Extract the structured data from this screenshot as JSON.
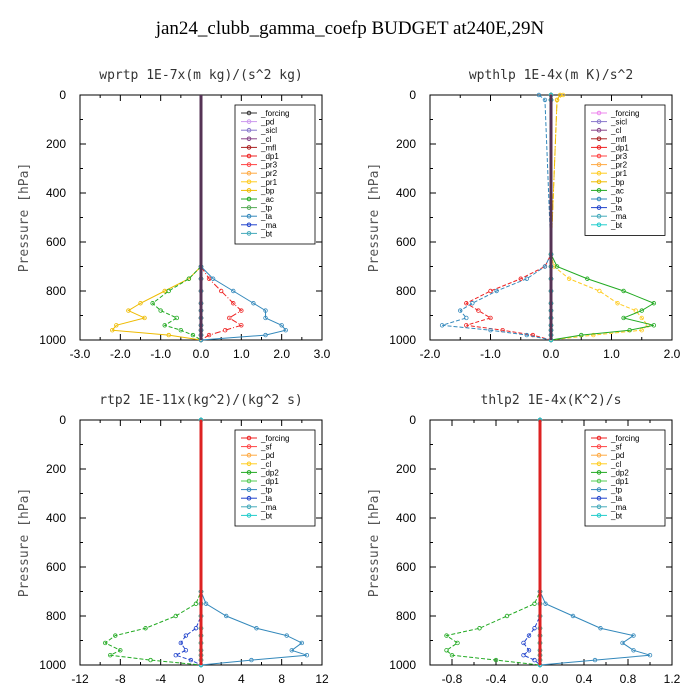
{
  "title": "jan24_clubb_gamma_coefp  BUDGET at240E,29N",
  "chart_data": [
    {
      "type": "line",
      "title": "wprtp  1E-7x(m kg)/(s^2 kg)",
      "ylabel": "Pressure [hPa]",
      "xlim": [
        -3,
        3
      ],
      "ylim": [
        1000,
        0
      ],
      "y_inverted": true,
      "xticks": [
        -3,
        -2,
        -1,
        0,
        1,
        2,
        3
      ],
      "xtick_labels": [
        "-3.0",
        "-2.0",
        "-1.0",
        "0.0",
        "1.0",
        "2.0",
        "3.0"
      ],
      "yticks": [
        0,
        200,
        400,
        600,
        800,
        1000
      ],
      "legend_position": "top-right",
      "pressure_levels": [
        700,
        750,
        800,
        850,
        880,
        910,
        940,
        960,
        980,
        1000
      ],
      "series": [
        {
          "name": "_forcing",
          "color": "#333333",
          "values": [
            0,
            0,
            0,
            0,
            0,
            0,
            0,
            0,
            0,
            0
          ]
        },
        {
          "name": "_pd",
          "color": "#cc99ee",
          "values": [
            0,
            0,
            0,
            0,
            0,
            0,
            0,
            0,
            0,
            0
          ]
        },
        {
          "name": "_sicl",
          "color": "#8877cc",
          "values": [
            0,
            0,
            0,
            0,
            0,
            0,
            0,
            0,
            0,
            0
          ]
        },
        {
          "name": "_cl",
          "color": "#884488",
          "values": [
            0,
            0,
            0,
            0,
            0,
            0,
            0,
            0,
            0,
            0
          ]
        },
        {
          "name": "_mfl",
          "color": "#aa2222",
          "values": [
            0,
            0,
            0,
            0,
            0,
            0,
            0,
            0,
            0,
            0
          ]
        },
        {
          "name": "_dp1",
          "color": "#ee2222",
          "values": [
            0,
            0.2,
            0.5,
            0.8,
            1.0,
            0.7,
            1.0,
            0.6,
            0.2,
            0
          ]
        },
        {
          "name": "_pr3",
          "color": "#ff4444",
          "values": [
            0,
            0,
            0,
            0,
            0,
            0,
            0,
            0,
            0,
            0
          ]
        },
        {
          "name": "_pr2",
          "color": "#ffaa44",
          "values": [
            0,
            0,
            0,
            0,
            0,
            0,
            0,
            0,
            0,
            0
          ]
        },
        {
          "name": "_pr1",
          "color": "#ffcc22",
          "values": [
            0,
            0,
            0,
            0,
            0,
            0,
            0,
            0,
            0,
            0
          ]
        },
        {
          "name": "_bp",
          "color": "#eebb00",
          "values": [
            0,
            -0.3,
            -0.9,
            -1.5,
            -1.8,
            -1.4,
            -2.1,
            -2.2,
            -0.8,
            0
          ]
        },
        {
          "name": "_ac",
          "color": "#22aa22",
          "values": [
            0,
            -0.3,
            -0.8,
            -1.2,
            -1.0,
            -0.6,
            -0.9,
            -0.5,
            -0.2,
            0
          ]
        },
        {
          "name": "_tp",
          "color": "#55aa55",
          "values": [
            0,
            0,
            0,
            0,
            0,
            0,
            0,
            0,
            0,
            0
          ]
        },
        {
          "name": "_ta",
          "color": "#3388bb",
          "values": [
            0,
            0.3,
            0.8,
            1.3,
            1.6,
            1.6,
            2.0,
            2.1,
            1.6,
            0
          ]
        },
        {
          "name": "_ma",
          "color": "#2244cc",
          "values": [
            0,
            0,
            0,
            0,
            0,
            0,
            0,
            0,
            0,
            0
          ]
        },
        {
          "name": "_bt",
          "color": "#44aabb",
          "values": [
            0,
            0,
            0,
            0,
            0,
            0,
            0,
            0,
            0,
            0
          ]
        }
      ]
    },
    {
      "type": "line",
      "title": "wpthlp  1E-4x(m K)/s^2",
      "ylabel": "Pressure [hPa]",
      "xlim": [
        -2,
        2
      ],
      "ylim": [
        1000,
        0
      ],
      "y_inverted": true,
      "xticks": [
        -2,
        -1,
        0,
        1,
        2
      ],
      "xtick_labels": [
        "-2.0",
        "-1.0",
        "0.0",
        "1.0",
        "2.0"
      ],
      "yticks": [
        0,
        200,
        400,
        600,
        800,
        1000
      ],
      "legend_position": "top-right",
      "pressure_levels": [
        0,
        20,
        650,
        700,
        750,
        800,
        850,
        880,
        910,
        940,
        960,
        980,
        1000
      ],
      "series": [
        {
          "name": "_forcing",
          "color": "#ee88ee",
          "values": [
            0,
            0,
            0,
            0,
            0,
            0,
            0,
            0,
            0,
            0,
            0,
            0,
            0
          ]
        },
        {
          "name": "_sicl",
          "color": "#8877cc",
          "values": [
            0,
            0,
            0,
            0,
            0,
            0,
            0,
            0,
            0,
            0,
            0,
            0,
            0
          ]
        },
        {
          "name": "_cl",
          "color": "#884488",
          "values": [
            0,
            0,
            0,
            0,
            0,
            0,
            0,
            0,
            0,
            0,
            0,
            0,
            0
          ]
        },
        {
          "name": "_mfl",
          "color": "#aa2222",
          "values": [
            0,
            0,
            0,
            0,
            0,
            0,
            0,
            0,
            0,
            0,
            0,
            0,
            0
          ]
        },
        {
          "name": "_dp1",
          "color": "#ee2222",
          "values": [
            0,
            0,
            0,
            -0.1,
            -0.5,
            -1.0,
            -1.4,
            -1.2,
            -1.0,
            -1.4,
            -0.8,
            -0.3,
            0
          ]
        },
        {
          "name": "_pr3",
          "color": "#ff4444",
          "values": [
            0,
            0,
            0,
            0,
            0,
            0,
            0,
            0,
            0,
            0,
            0,
            0,
            0
          ]
        },
        {
          "name": "_pr2",
          "color": "#ffaa44",
          "values": [
            0,
            0,
            0,
            0,
            0,
            0,
            0,
            0,
            0,
            0,
            0,
            0,
            0
          ]
        },
        {
          "name": "_pr1",
          "color": "#ffcc22",
          "values": [
            0.2,
            0.1,
            0,
            0.05,
            0.3,
            0.8,
            1.1,
            1.4,
            1.5,
            1.6,
            1.5,
            0.7,
            0
          ]
        },
        {
          "name": "_bp",
          "color": "#eebb00",
          "values": [
            0.15,
            0.1,
            0,
            0,
            0,
            0,
            0,
            0,
            0,
            0,
            0,
            0,
            0
          ]
        },
        {
          "name": "_ac",
          "color": "#22aa22",
          "values": [
            0,
            0,
            0,
            0.1,
            0.6,
            1.2,
            1.7,
            1.5,
            1.2,
            1.7,
            1.3,
            0.5,
            0
          ]
        },
        {
          "name": "_tp",
          "color": "#3388bb",
          "values": [
            -0.2,
            -0.1,
            0,
            -0.1,
            -0.4,
            -0.9,
            -1.3,
            -1.5,
            -1.4,
            -1.8,
            -1.0,
            -0.4,
            0
          ]
        },
        {
          "name": "_ta",
          "color": "#2244cc",
          "values": [
            0,
            0,
            0,
            0,
            0,
            0,
            0,
            0,
            0,
            0,
            0,
            0,
            0
          ]
        },
        {
          "name": "_ma",
          "color": "#44aabb",
          "values": [
            0,
            0,
            0,
            0,
            0,
            0,
            0,
            0,
            0,
            0,
            0,
            0,
            0
          ]
        },
        {
          "name": "_bt",
          "color": "#22cccc",
          "values": [
            0,
            0,
            0,
            0,
            0,
            0,
            0,
            0,
            0,
            0,
            0,
            0,
            0
          ]
        }
      ]
    },
    {
      "type": "line",
      "title": "rtp2  1E-11x(kg^2)/(kg^2 s)",
      "ylabel": "Pressure [hPa]",
      "xlim": [
        -12,
        12
      ],
      "ylim": [
        1000,
        0
      ],
      "y_inverted": true,
      "xticks": [
        -12,
        -8,
        -4,
        0,
        4,
        8,
        12
      ],
      "xtick_labels": [
        "-12",
        "-8",
        "-4",
        "0",
        "4",
        "8",
        "12"
      ],
      "yticks": [
        0,
        200,
        400,
        600,
        800,
        1000
      ],
      "legend_position": "top-right",
      "pressure_levels": [
        0,
        700,
        750,
        800,
        850,
        880,
        910,
        940,
        960,
        980,
        1000
      ],
      "series": [
        {
          "name": "_forcing",
          "color": "#ee2222",
          "values": [
            0,
            0,
            0,
            0,
            0,
            0,
            0,
            0,
            0,
            0,
            0
          ]
        },
        {
          "name": "_sf",
          "color": "#ff4444",
          "values": [
            0,
            0,
            0,
            0,
            0,
            0,
            0,
            0,
            0,
            0,
            0
          ]
        },
        {
          "name": "_pd",
          "color": "#ffaa44",
          "values": [
            0,
            0,
            0,
            0,
            0,
            0,
            0,
            0,
            0,
            0,
            0
          ]
        },
        {
          "name": "_cl",
          "color": "#ffcc22",
          "values": [
            0,
            0,
            0,
            0,
            0,
            0,
            0,
            0,
            0,
            0,
            0
          ]
        },
        {
          "name": "_dp2",
          "color": "#22aa22",
          "values": [
            0,
            0,
            -0.5,
            -2.5,
            -5.5,
            -8.5,
            -9.5,
            -8.0,
            -9.0,
            -5.0,
            0
          ]
        },
        {
          "name": "_dp1",
          "color": "#55cc55",
          "values": [
            0,
            0,
            0,
            0,
            0,
            0,
            0,
            0,
            0,
            0,
            0
          ]
        },
        {
          "name": "_tp",
          "color": "#3388bb",
          "values": [
            0,
            0,
            0.5,
            2.5,
            5.5,
            8.5,
            10.0,
            9.0,
            10.5,
            5.0,
            0
          ]
        },
        {
          "name": "_ta",
          "color": "#2244cc",
          "values": [
            0,
            0,
            0,
            0,
            -0.5,
            -1.5,
            -2.0,
            -1.5,
            -2.5,
            -1.0,
            0
          ]
        },
        {
          "name": "_ma",
          "color": "#44aabb",
          "values": [
            0,
            0,
            0,
            0,
            0,
            0,
            0,
            0,
            0,
            0,
            0
          ]
        },
        {
          "name": "_bt",
          "color": "#22cccc",
          "values": [
            0,
            0,
            0,
            0,
            0,
            0,
            0,
            0,
            0,
            0,
            0
          ]
        }
      ]
    },
    {
      "type": "line",
      "title": "thlp2  1E-4x(K^2)/s",
      "ylabel": "Pressure [hPa]",
      "xlim": [
        -1,
        1.2
      ],
      "ylim": [
        1000,
        0
      ],
      "y_inverted": true,
      "xticks": [
        -0.8,
        -0.4,
        0.0,
        0.4,
        0.8,
        1.2
      ],
      "xtick_labels": [
        "-0.8",
        "-0.4",
        "0.0",
        "0.4",
        "0.8",
        "1.2"
      ],
      "yticks": [
        0,
        200,
        400,
        600,
        800,
        1000
      ],
      "legend_position": "top-right",
      "pressure_levels": [
        0,
        700,
        750,
        800,
        850,
        880,
        910,
        940,
        960,
        980,
        1000
      ],
      "series": [
        {
          "name": "_forcing",
          "color": "#ee2222",
          "values": [
            0,
            0,
            0,
            0,
            0,
            0,
            0,
            0,
            0,
            0,
            0
          ]
        },
        {
          "name": "_sf",
          "color": "#ff4444",
          "values": [
            0,
            0,
            0,
            0,
            0,
            0,
            0,
            0,
            0,
            0,
            0
          ]
        },
        {
          "name": "_pd",
          "color": "#ffaa44",
          "values": [
            0,
            0,
            0,
            0,
            0,
            0,
            0,
            0,
            0,
            0,
            0
          ]
        },
        {
          "name": "_cl",
          "color": "#ffcc22",
          "values": [
            0,
            0,
            0,
            0,
            0,
            0,
            0,
            0,
            0,
            0,
            0
          ]
        },
        {
          "name": "_dp2",
          "color": "#22aa22",
          "values": [
            0,
            0,
            -0.05,
            -0.3,
            -0.55,
            -0.85,
            -0.75,
            -0.85,
            -0.8,
            -0.4,
            0
          ]
        },
        {
          "name": "_dp1",
          "color": "#55cc55",
          "values": [
            0,
            0,
            0,
            0,
            0,
            0,
            0,
            0,
            0,
            0,
            0
          ]
        },
        {
          "name": "_tp",
          "color": "#3388bb",
          "values": [
            0,
            0,
            0.05,
            0.3,
            0.55,
            0.85,
            0.75,
            0.85,
            1.0,
            0.5,
            0
          ]
        },
        {
          "name": "_ta",
          "color": "#2244cc",
          "values": [
            0,
            0,
            0,
            0,
            -0.05,
            -0.1,
            -0.15,
            -0.1,
            -0.15,
            -0.05,
            0
          ]
        },
        {
          "name": "_ma",
          "color": "#44aabb",
          "values": [
            0,
            0,
            0,
            0,
            0,
            0,
            0,
            0,
            0,
            0,
            0
          ]
        },
        {
          "name": "_bt",
          "color": "#22cccc",
          "values": [
            0,
            0,
            0,
            0,
            0,
            0,
            0,
            0,
            0,
            0,
            0
          ]
        }
      ]
    }
  ]
}
